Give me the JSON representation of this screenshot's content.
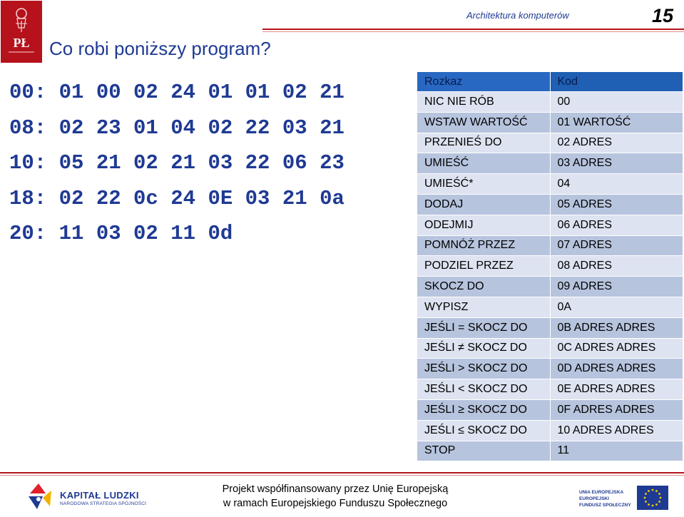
{
  "header": {
    "course": "Architektura komputerów",
    "page_number": "15",
    "logo_text": "PŁ"
  },
  "title": "Co robi poniższy program?",
  "memory_dump": [
    "00: 01 00 02 24 01 01 02 21",
    "08: 02 23 01 04 02 22 03 21",
    "10: 05 21 02 21 03 22 06 23",
    "18: 02 22 0c 24 0E 03 21 0a",
    "20: 11 03 02 11 0d"
  ],
  "instruction_table": {
    "headers": [
      "Rozkaz",
      "Kod"
    ],
    "rows": [
      [
        "NIC NIE RÓB",
        "00"
      ],
      [
        "WSTAW WARTOŚĆ",
        "01 WARTOŚĆ"
      ],
      [
        "PRZENIEŚ DO",
        "02 ADRES"
      ],
      [
        "UMIEŚĆ",
        "03 ADRES"
      ],
      [
        "UMIEŚĆ*",
        "04"
      ],
      [
        "DODAJ",
        "05 ADRES"
      ],
      [
        "ODEJMIJ",
        "06 ADRES"
      ],
      [
        "POMNÓŻ PRZEZ",
        "07 ADRES"
      ],
      [
        "PODZIEL PRZEZ",
        "08 ADRES"
      ],
      [
        "SKOCZ DO",
        "09 ADRES"
      ],
      [
        "WYPISZ",
        "0A"
      ],
      [
        "JEŚLI = SKOCZ DO",
        "0B ADRES ADRES"
      ],
      [
        "JEŚLI ≠ SKOCZ DO",
        "0C ADRES ADRES"
      ],
      [
        "JEŚLI > SKOCZ DO",
        "0D ADRES ADRES"
      ],
      [
        "JEŚLI < SKOCZ DO",
        "0E ADRES ADRES"
      ],
      [
        "JEŚLI ≥ SKOCZ DO",
        "0F ADRES ADRES"
      ],
      [
        "JEŚLI ≤ SKOCZ DO",
        "10 ADRES ADRES"
      ],
      [
        "STOP",
        "11"
      ]
    ]
  },
  "footer": {
    "left_logo_title": "KAPITAŁ LUDZKI",
    "left_logo_subtitle": "NARODOWA STRATEGIA SPÓJNOŚCI",
    "line1": "Projekt współfinansowany przez Unię Europejską",
    "line2": "w ramach Europejskiego Funduszu Społecznego",
    "eu_line1": "UNIA EUROPEJSKA",
    "eu_line2": "EUROPEJSKI",
    "eu_line3": "FUNDUSZ SPOŁECZNY"
  },
  "colors": {
    "brand_red": "#b5121b",
    "navy": "#1f3a93",
    "table_header": "#1f5fb4",
    "row_dark": "#b7c4de",
    "row_light": "#dde3f0"
  }
}
